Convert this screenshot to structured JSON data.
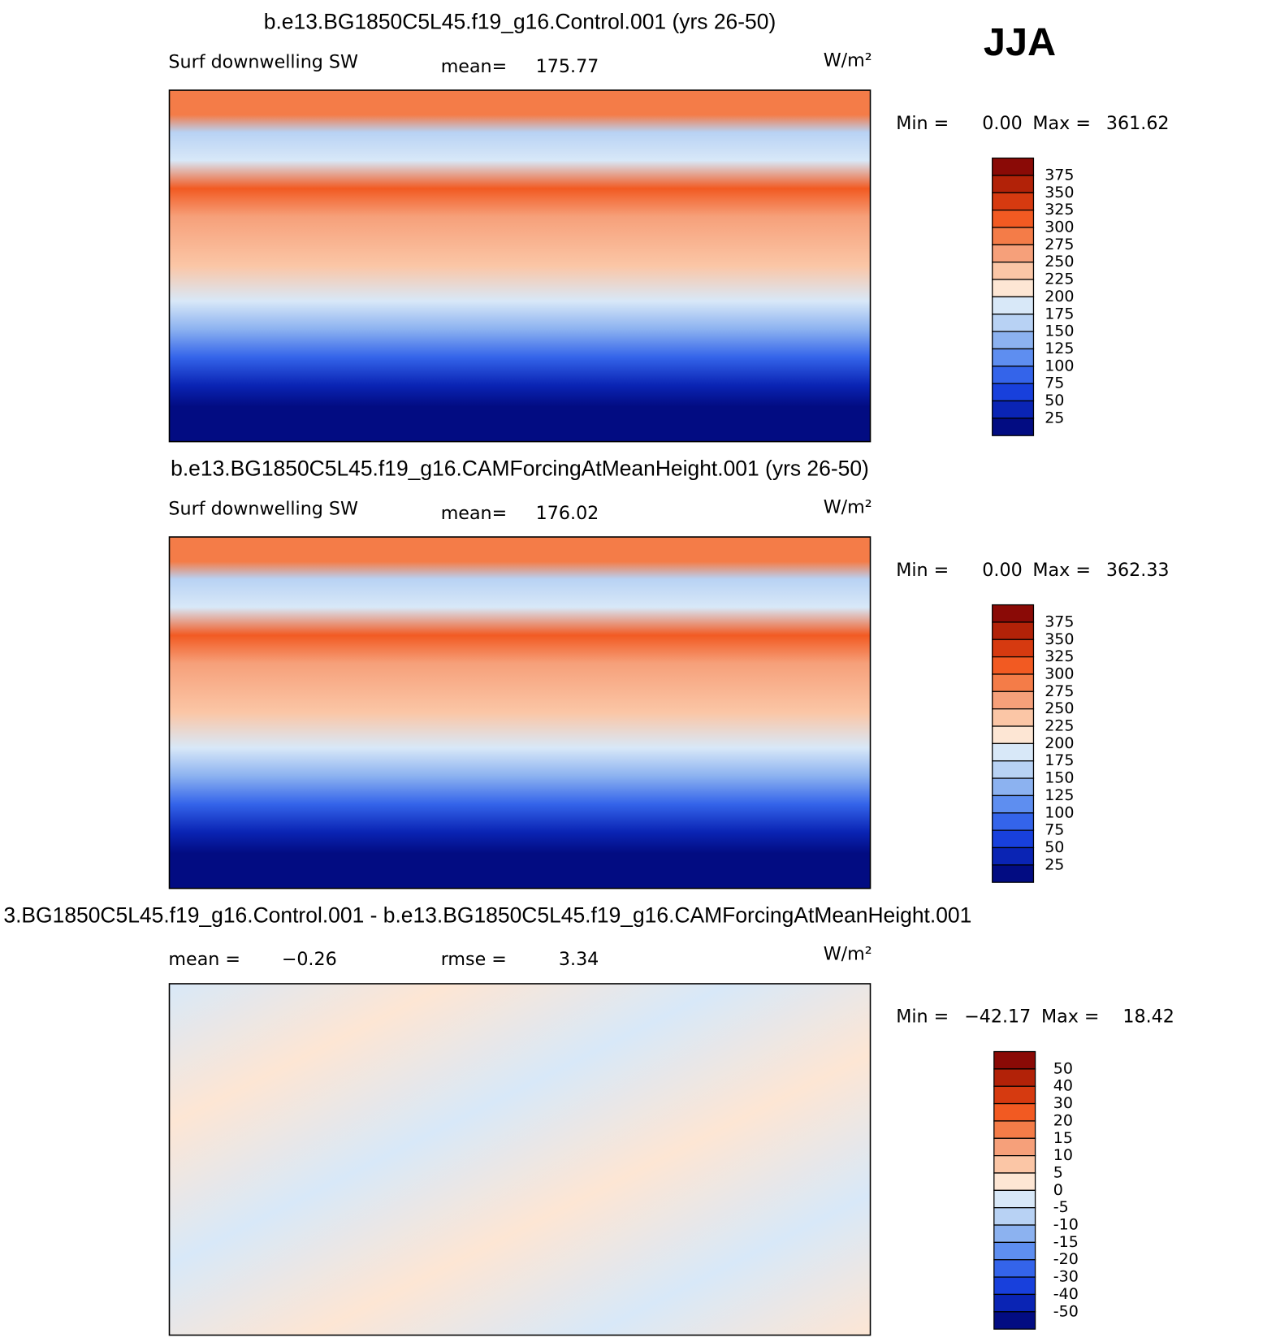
{
  "season": "JJA",
  "panels": [
    {
      "title": "b.e13.BG1850C5L45.f19_g16.Control.001 (yrs 26-50)",
      "variable": "Surf downwelling SW",
      "mean_label": "mean=",
      "mean": "175.77",
      "units": "W/m²",
      "min_label": "Min =",
      "min": "0.00",
      "max_label": "Max =",
      "max": "361.62",
      "colorbar": {
        "levels": [
          375,
          350,
          325,
          300,
          275,
          250,
          225,
          200,
          175,
          150,
          125,
          100,
          75,
          50,
          25
        ],
        "colors": [
          "#8a0a06",
          "#b22208",
          "#d63a10",
          "#f25a22",
          "#f47c48",
          "#f6a07a",
          "#fbc6a6",
          "#fde6d4",
          "#d8e8f8",
          "#b8d2f4",
          "#8cb2f0",
          "#5e8ef0",
          "#3464ea",
          "#1840dc",
          "#0a24b4",
          "#020c82"
        ]
      }
    },
    {
      "title": "b.e13.BG1850C5L45.f19_g16.CAMForcingAtMeanHeight.001 (yrs 26-50)",
      "variable": "Surf downwelling SW",
      "mean_label": "mean=",
      "mean": "176.02",
      "units": "W/m²",
      "min_label": "Min =",
      "min": "0.00",
      "max_label": "Max =",
      "max": "362.33",
      "colorbar": {
        "levels": [
          375,
          350,
          325,
          300,
          275,
          250,
          225,
          200,
          175,
          150,
          125,
          100,
          75,
          50,
          25
        ],
        "colors": [
          "#8a0a06",
          "#b22208",
          "#d63a10",
          "#f25a22",
          "#f47c48",
          "#f6a07a",
          "#fbc6a6",
          "#fde6d4",
          "#d8e8f8",
          "#b8d2f4",
          "#8cb2f0",
          "#5e8ef0",
          "#3464ea",
          "#1840dc",
          "#0a24b4",
          "#020c82"
        ]
      }
    },
    {
      "title": "3.BG1850C5L45.f19_g16.Control.001 - b.e13.BG1850C5L45.f19_g16.CAMForcingAtMeanHeight.001",
      "mean_label": "mean =",
      "mean": "−0.26",
      "rmse_label": "rmse =",
      "rmse": "3.34",
      "units": "W/m²",
      "min_label": "Min =",
      "min": "−42.17",
      "max_label": "Max =",
      "max": "18.42",
      "colorbar": {
        "levels": [
          50,
          40,
          30,
          20,
          15,
          10,
          5,
          0,
          -5,
          -10,
          -15,
          -20,
          -30,
          -40,
          -50
        ],
        "colors": [
          "#8a0a06",
          "#b22208",
          "#d63a10",
          "#f25a22",
          "#f47c48",
          "#f6a07a",
          "#fbc6a6",
          "#fde6d4",
          "#d8e8f8",
          "#b8d2f4",
          "#8cb2f0",
          "#5e8ef0",
          "#3464ea",
          "#1840dc",
          "#0a24b4",
          "#020c82"
        ]
      }
    }
  ]
}
